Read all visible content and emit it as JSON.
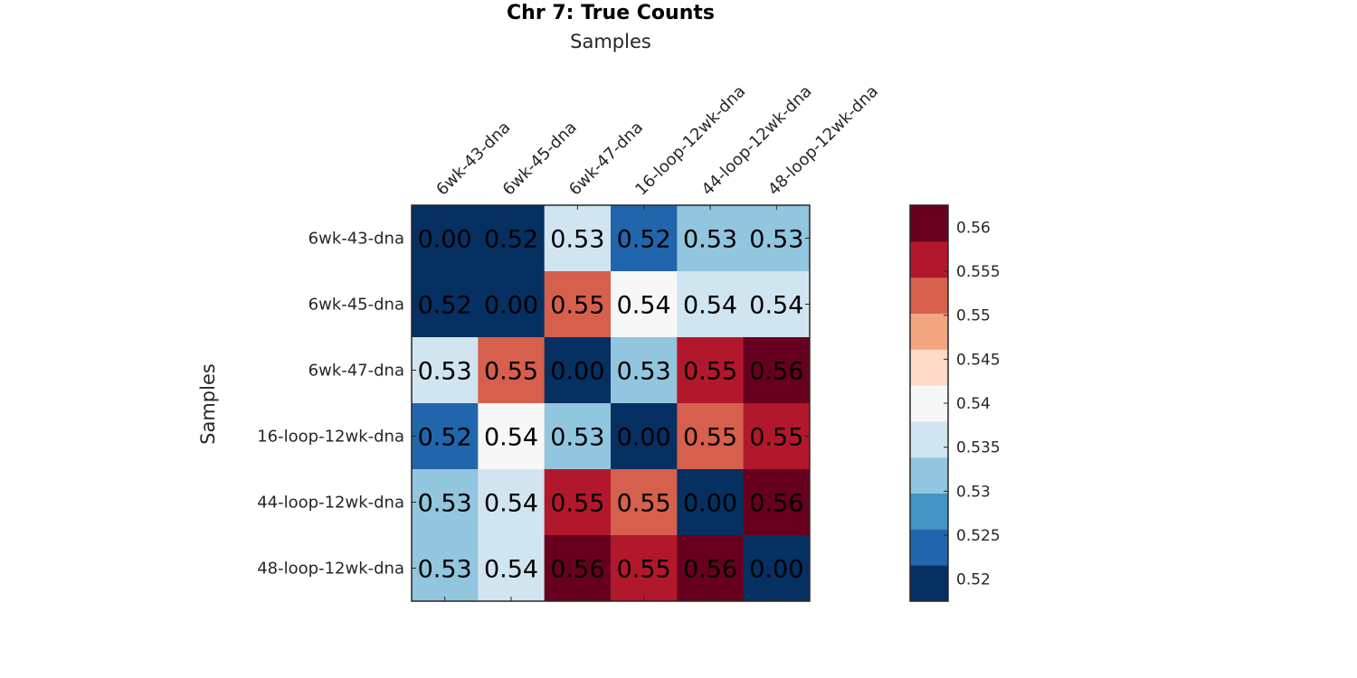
{
  "chart_data": {
    "type": "heatmap",
    "title": "Chr 7: True Counts",
    "xlabel": "Samples",
    "ylabel": "Samples",
    "x_categories": [
      "6wk-43-dna",
      "6wk-45-dna",
      "6wk-47-dna",
      "16-loop-12wk-dna",
      "44-loop-12wk-dna",
      "48-loop-12wk-dna"
    ],
    "y_categories": [
      "6wk-43-dna",
      "6wk-45-dna",
      "6wk-47-dna",
      "16-loop-12wk-dna",
      "44-loop-12wk-dna",
      "48-loop-12wk-dna"
    ],
    "values": [
      [
        0.0,
        0.52,
        0.53,
        0.52,
        0.53,
        0.53
      ],
      [
        0.52,
        0.0,
        0.55,
        0.54,
        0.54,
        0.54
      ],
      [
        0.53,
        0.55,
        0.0,
        0.53,
        0.55,
        0.56
      ],
      [
        0.52,
        0.54,
        0.53,
        0.0,
        0.55,
        0.55
      ],
      [
        0.53,
        0.54,
        0.55,
        0.55,
        0.0,
        0.56
      ],
      [
        0.53,
        0.54,
        0.56,
        0.55,
        0.56,
        0.0
      ]
    ],
    "cell_colors": [
      [
        "#053061",
        "#053061",
        "#d1e5f0",
        "#2166ac",
        "#92c5de",
        "#92c5de"
      ],
      [
        "#053061",
        "#053061",
        "#d6604d",
        "#f7f7f7",
        "#d1e5f0",
        "#d1e5f0"
      ],
      [
        "#d1e5f0",
        "#d6604d",
        "#053061",
        "#92c5de",
        "#b2182b",
        "#67001f"
      ],
      [
        "#2166ac",
        "#f7f7f7",
        "#92c5de",
        "#053061",
        "#d6604d",
        "#b2182b"
      ],
      [
        "#92c5de",
        "#d1e5f0",
        "#b2182b",
        "#d6604d",
        "#053061",
        "#67001f"
      ],
      [
        "#92c5de",
        "#d1e5f0",
        "#67001f",
        "#b2182b",
        "#67001f",
        "#053061"
      ]
    ],
    "colorbar": {
      "range": [
        0.5175,
        0.5625
      ],
      "colors": [
        "#053061",
        "#2166ac",
        "#4393c3",
        "#92c5de",
        "#d1e5f0",
        "#f7f7f7",
        "#fddbc7",
        "#f4a582",
        "#d6604d",
        "#b2182b",
        "#67001f"
      ],
      "ticks": [
        0.52,
        0.525,
        0.53,
        0.535,
        0.54,
        0.545,
        0.55,
        0.555,
        0.56
      ],
      "tick_labels": [
        "0.52",
        "0.525",
        "0.53",
        "0.535",
        "0.54",
        "0.545",
        "0.55",
        "0.555",
        "0.56"
      ]
    }
  }
}
